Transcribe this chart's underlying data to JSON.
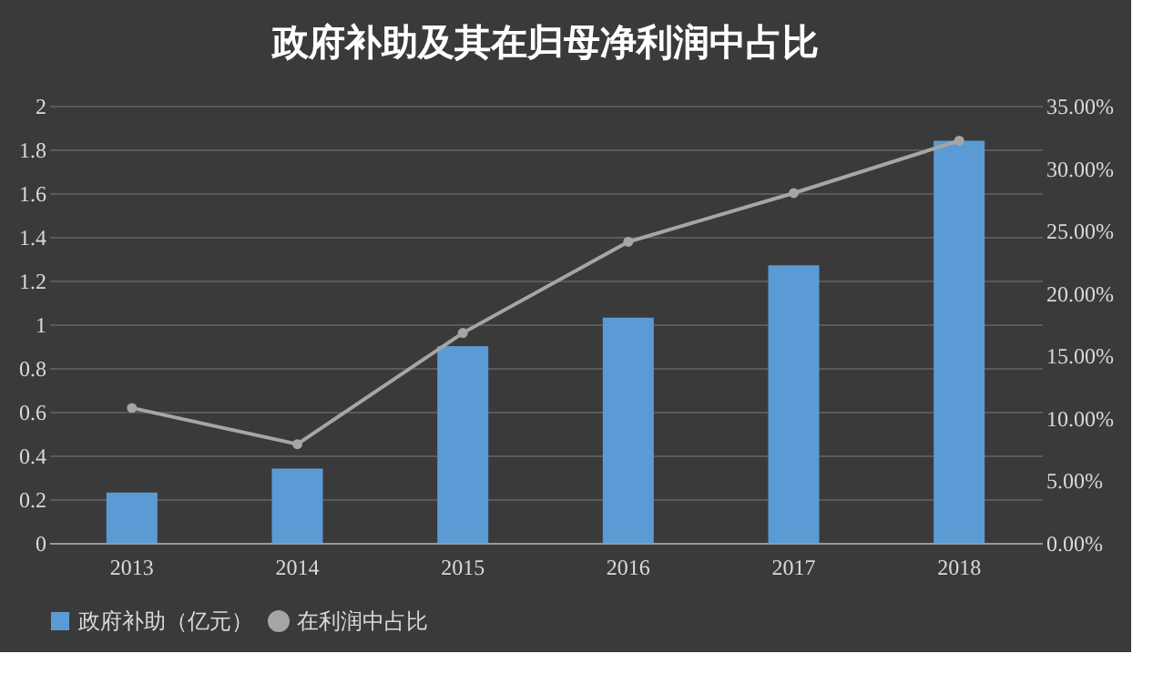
{
  "chart_data": {
    "type": "bar",
    "title": "政府补助及其在归母净利润中占比",
    "categories": [
      "2013",
      "2014",
      "2015",
      "2016",
      "2017",
      "2018"
    ],
    "series": [
      {
        "name": "政府补助（亿元）",
        "color": "#5b9bd5",
        "values": [
          0.23,
          0.34,
          0.9,
          1.03,
          1.27,
          1.84
        ]
      },
      {
        "name": "在利润中占比",
        "type": "line",
        "axis": "y2",
        "color": "#a6a6a6",
        "marker": "circle",
        "values": [
          10.8,
          7.9,
          16.8,
          24.1,
          28.0,
          32.2
        ]
      }
    ],
    "ylim": [
      0,
      2
    ],
    "yticks": [
      0,
      0.2,
      0.4,
      0.6,
      0.8,
      1,
      1.2,
      1.4,
      1.6,
      1.8,
      2
    ],
    "y2lim": [
      0,
      35
    ],
    "y2ticks": [
      {
        "value": 0,
        "label": "0.00%"
      },
      {
        "value": 5,
        "label": "5.00%"
      },
      {
        "value": 10,
        "label": "10.00%"
      },
      {
        "value": 15,
        "label": "15.00%"
      },
      {
        "value": 20,
        "label": "20.00%"
      },
      {
        "value": 25,
        "label": "25.00%"
      },
      {
        "value": 30,
        "label": "30.00%"
      },
      {
        "value": 35,
        "label": "35.00%"
      }
    ],
    "grid": "y",
    "legend": "bottom"
  }
}
